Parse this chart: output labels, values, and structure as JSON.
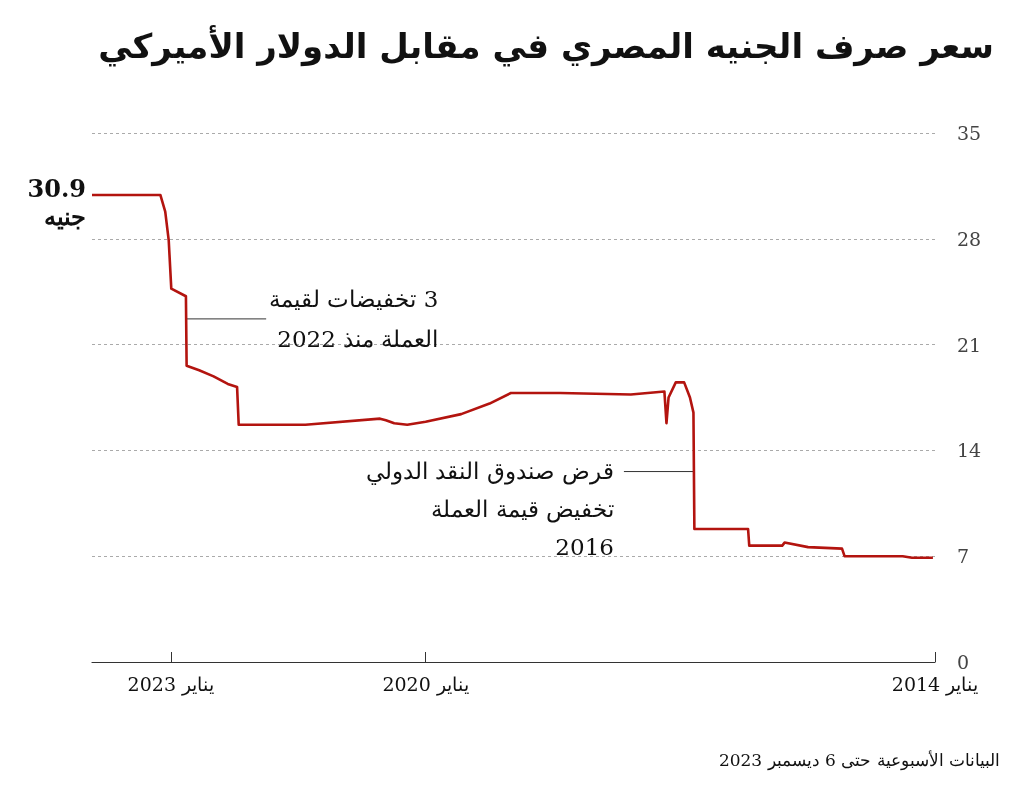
{
  "chart_data": {
    "type": "line",
    "title": "سعر صرف الجنيه المصري في مقابل الدولار الأميركي",
    "series": [
      {
        "color": "#b3140f",
        "x": [
          "2014-01-10",
          "2014-04-10",
          "2014-05-20",
          "2015-01-25",
          "2015-02-05",
          "2015-07-01",
          "2015-10-10",
          "2015-10-20",
          "2015-11-15",
          "2016-03-10",
          "2016-03-15",
          "2016-11-01",
          "2016-11-05",
          "2016-11-20",
          "2016-12-15",
          "2017-01-20",
          "2017-02-20",
          "2017-03-01",
          "2017-03-10",
          "2017-08-01",
          "2018-06-01",
          "2018-12-30",
          "2019-04-01",
          "2019-08-01",
          "2020-01-01",
          "2020-03-20",
          "2020-05-15",
          "2020-06-20",
          "2020-07-15",
          "2021-06-01",
          "2022-03-15",
          "2022-03-22",
          "2022-05-01",
          "2022-07-01",
          "2022-09-01",
          "2022-10-25",
          "2022-10-28",
          "2022-12-30",
          "2023-01-10",
          "2023-01-25",
          "2023-02-15",
          "2023-12-06"
        ],
        "values": [
          6.9,
          6.9,
          7.0,
          7.0,
          7.5,
          7.6,
          7.9,
          7.7,
          7.7,
          7.7,
          8.8,
          8.8,
          16.5,
          17.5,
          18.5,
          18.5,
          17.5,
          15.8,
          17.9,
          17.7,
          17.8,
          17.8,
          17.1,
          16.4,
          15.9,
          15.7,
          15.8,
          16.0,
          16.1,
          15.7,
          15.7,
          18.2,
          18.4,
          18.9,
          19.3,
          19.6,
          24.2,
          24.7,
          27.9,
          29.8,
          30.9,
          30.9
        ]
      }
    ],
    "xlim": [
      "2023-12-06",
      "2014-01-01"
    ],
    "xticks": [
      {
        "value": "2023-01-01",
        "label": "يناير 2023"
      },
      {
        "value": "2020-01-01",
        "label": "يناير 2020"
      },
      {
        "value": "2014-01-01",
        "label": "يناير 2014"
      }
    ],
    "ylim": [
      0,
      35
    ],
    "yticks": [
      0,
      7,
      14,
      21,
      28,
      35
    ],
    "grid": "y",
    "annotations": [
      {
        "text": "30.9\nجنيه",
        "x": "2023-12-06",
        "y": 30.9
      },
      {
        "text": "3 تخفيضات لقيمة\nالعملة منذ 2022",
        "x": "2022-10-27",
        "y": 22.7
      },
      {
        "text": "قرض صندوق النقد الدولي\nتخفيض قيمة العملة\n2016",
        "x": "2016-11-03",
        "y": 12.6
      },
      "البيانات الأسبوعية حتى 6 ديسمبر 2023"
    ]
  }
}
